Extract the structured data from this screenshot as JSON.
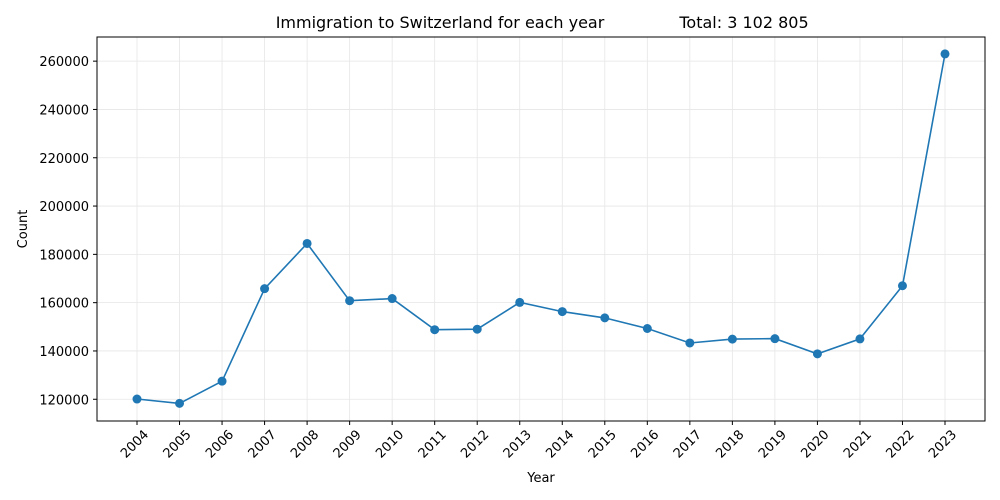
{
  "chart_data": {
    "type": "line",
    "title": "Immigration to Switzerland for each year",
    "total_label": "Total: 3 102 805",
    "xlabel": "Year",
    "ylabel": "Count",
    "x": [
      "2004",
      "2005",
      "2006",
      "2007",
      "2008",
      "2009",
      "2010",
      "2011",
      "2012",
      "2013",
      "2014",
      "2015",
      "2016",
      "2017",
      "2018",
      "2019",
      "2020",
      "2021",
      "2022",
      "2023"
    ],
    "series": [
      {
        "values": [
          120100,
          118300,
          127500,
          165800,
          184500,
          160800,
          161700,
          148800,
          149000,
          160100,
          156300,
          153700,
          149300,
          143300,
          144900,
          145100,
          138800,
          145000,
          167000,
          263000
        ]
      }
    ],
    "yticks": [
      120000,
      140000,
      160000,
      180000,
      200000,
      220000,
      240000,
      260000
    ],
    "ylim": [
      111000,
      270000
    ],
    "grid": true,
    "line_color": "#1f77b4"
  }
}
